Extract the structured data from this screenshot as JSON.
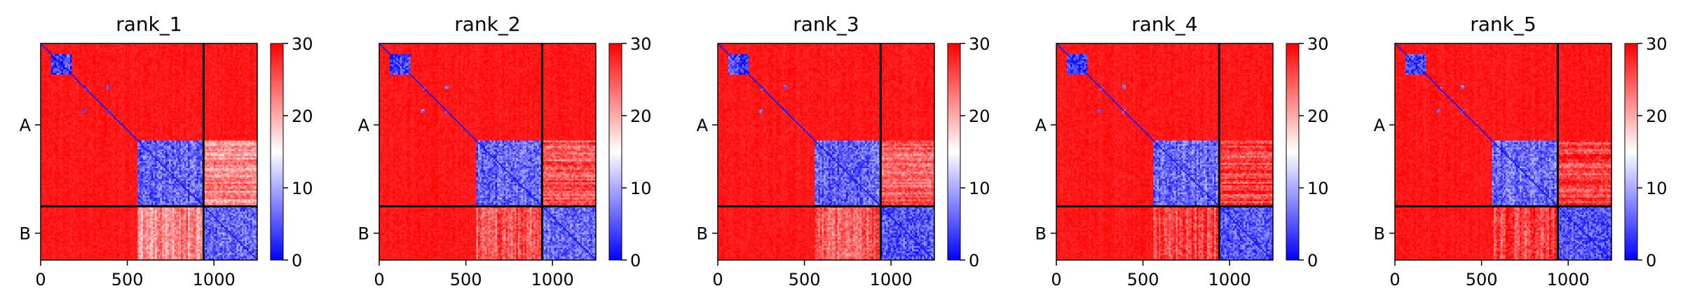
{
  "chart_data": {
    "type": "heatmap",
    "colormap": {
      "name": "bwr",
      "low": "#0000ff",
      "mid": "#ffffff",
      "high": "#ff0000"
    },
    "colorbar": {
      "range": [
        0,
        30
      ],
      "ticks": [
        0,
        10,
        20,
        30
      ]
    },
    "x_range": [
      0,
      1250
    ],
    "x_ticks": [
      0,
      500,
      1000
    ],
    "chain_labels": [
      "A",
      "B"
    ],
    "chain_boundaries": [
      940
    ],
    "chain_label_positions": [
      470,
      1095
    ],
    "panels": [
      {
        "title": "rank_1",
        "ab_cross_mean": 22,
        "b_domain_mean": 6
      },
      {
        "title": "rank_2",
        "ab_cross_mean": 25,
        "b_domain_mean": 6
      },
      {
        "title": "rank_3",
        "ab_cross_mean": 25,
        "b_domain_mean": 5
      },
      {
        "title": "rank_4",
        "ab_cross_mean": 26,
        "b_domain_mean": 5
      },
      {
        "title": "rank_5",
        "ab_cross_mean": 26,
        "b_domain_mean": 5
      }
    ],
    "structure": {
      "blocks": [
        {
          "start": 60,
          "end": 180,
          "mean": 4
        },
        {
          "start": 560,
          "end": 940,
          "mean": 6
        }
      ],
      "contact_spots": [
        {
          "x": 250,
          "y": 390
        },
        {
          "x": 390,
          "y": 250
        },
        {
          "x": 260,
          "y": 260
        },
        {
          "x": 390,
          "y": 390
        }
      ],
      "background_mean": 30
    }
  }
}
